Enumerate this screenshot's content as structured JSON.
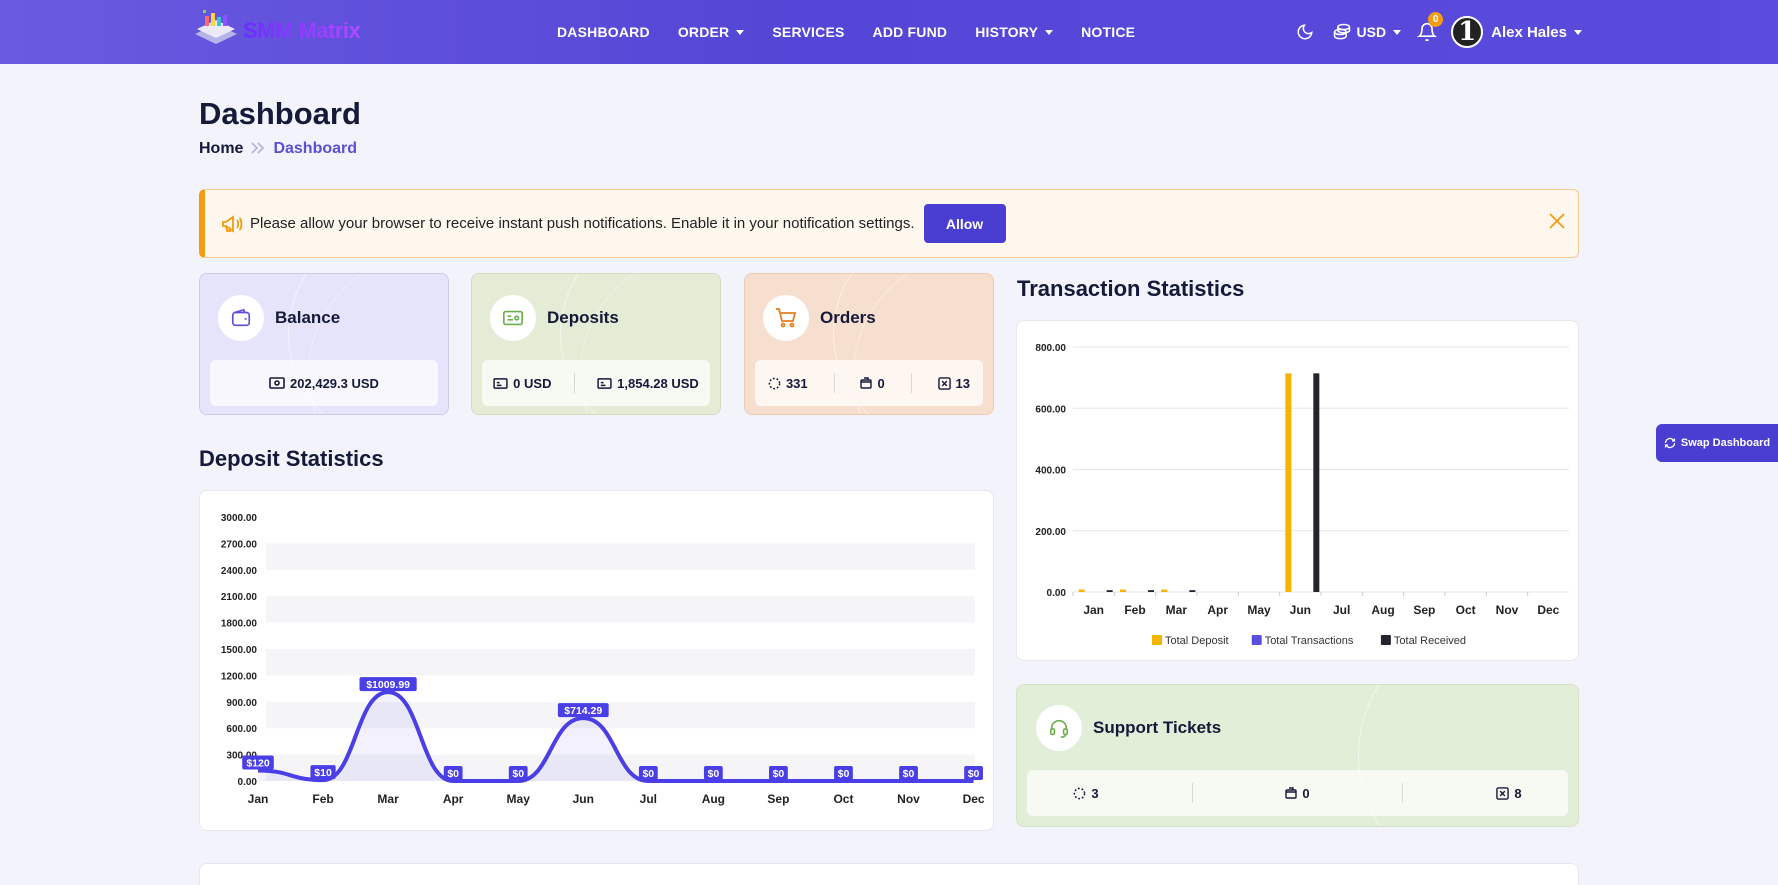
{
  "brand": {
    "name": "SMM Matrix"
  },
  "nav": {
    "items": [
      {
        "label": "DASHBOARD",
        "caret": false
      },
      {
        "label": "ORDER",
        "caret": true
      },
      {
        "label": "SERVICES",
        "caret": false
      },
      {
        "label": "ADD FUND",
        "caret": false
      },
      {
        "label": "HISTORY",
        "caret": true
      },
      {
        "label": "NOTICE",
        "caret": false
      }
    ],
    "currency": "USD",
    "notification_count": "0",
    "avatar_text": "1",
    "user_name": "Alex Hales"
  },
  "page": {
    "title": "Dashboard",
    "breadcrumb": {
      "home": "Home",
      "current": "Dashboard"
    }
  },
  "alert": {
    "text": "Please allow your browser to receive instant push notifications. Enable it in your notification settings.",
    "button": "Allow"
  },
  "cards": {
    "balance": {
      "title": "Balance",
      "value": "202,429.3 USD"
    },
    "deposits": {
      "title": "Deposits",
      "value_1": "0 USD",
      "value_2": "1,854.28 USD"
    },
    "orders": {
      "title": "Orders",
      "pending": "331",
      "completed": "0",
      "cancelled": "13"
    }
  },
  "sections": {
    "deposit_stats": "Deposit Statistics",
    "transaction_stats": "Transaction Statistics"
  },
  "support": {
    "title": "Support Tickets",
    "open": "3",
    "answered": "0",
    "closed": "8"
  },
  "swap": {
    "label": "Swap Dashboard"
  },
  "colors": {
    "primary": "#4a3ed2",
    "deposit_bar": "#f5b400",
    "transaction_bar": "#5b4fe0",
    "received_bar": "#23242e",
    "alert_border": "#f39c12"
  },
  "chart_data": [
    {
      "type": "area",
      "title": "Deposit Statistics",
      "categories": [
        "Jan",
        "Feb",
        "Mar",
        "Apr",
        "May",
        "Jun",
        "Jul",
        "Aug",
        "Sep",
        "Oct",
        "Nov",
        "Dec"
      ],
      "values": [
        120,
        10,
        1009.99,
        0,
        0,
        714.29,
        0,
        0,
        0,
        0,
        0,
        0
      ],
      "data_labels": [
        "$120",
        "$10",
        "$1009.99",
        "$0",
        "$0",
        "$714.29",
        "$0",
        "$0",
        "$0",
        "$0",
        "$0",
        "$0"
      ],
      "yticks": [
        "0.00",
        "300.00",
        "600.00",
        "900.00",
        "1200.00",
        "1500.00",
        "1800.00",
        "2100.00",
        "2400.00",
        "2700.00",
        "3000.00"
      ],
      "ylim": [
        0,
        3000
      ]
    },
    {
      "type": "bar",
      "title": "Transaction Statistics",
      "categories": [
        "Jan",
        "Feb",
        "Mar",
        "Apr",
        "May",
        "Jun",
        "Jul",
        "Aug",
        "Sep",
        "Oct",
        "Nov",
        "Dec"
      ],
      "series": [
        {
          "name": "Total Deposit",
          "color": "#f5b400",
          "values": [
            8,
            8,
            8,
            0,
            0,
            714,
            0,
            0,
            0,
            0,
            0,
            0
          ]
        },
        {
          "name": "Total Transactions",
          "color": "#5b4fe0",
          "values": [
            0,
            0,
            0,
            0,
            0,
            0,
            0,
            0,
            0,
            0,
            0,
            0
          ]
        },
        {
          "name": "Total Received",
          "color": "#23242e",
          "values": [
            6,
            6,
            6,
            0,
            0,
            714,
            0,
            0,
            0,
            0,
            0,
            0
          ]
        }
      ],
      "yticks": [
        "0.00",
        "200.00",
        "400.00",
        "600.00",
        "800.00"
      ],
      "ylim": [
        0,
        800
      ],
      "legend": "bottom"
    }
  ]
}
